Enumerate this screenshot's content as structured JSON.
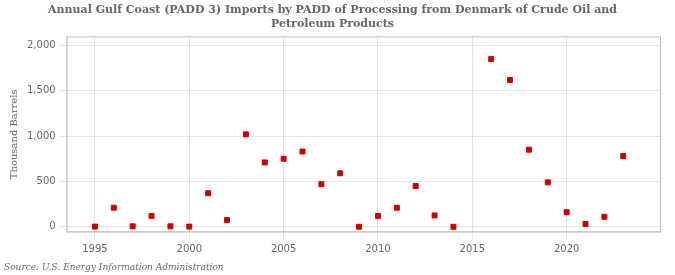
{
  "chart_data": {
    "type": "scatter",
    "title": "Annual Gulf Coast (PADD 3) Imports by PADD of Processing from Denmark of Crude Oil and\nPetroleum Products",
    "ylabel": "Thousand Barrels",
    "source": "Source: U.S. Energy Information Administration",
    "color": "#cc0000",
    "marker": "square",
    "grid": true,
    "x": [
      1995,
      1996,
      1997,
      1998,
      1999,
      2000,
      2001,
      2002,
      2003,
      2004,
      2005,
      2006,
      2007,
      2008,
      2009,
      2010,
      2011,
      2012,
      2013,
      2014,
      2016,
      2017,
      2018,
      2019,
      2020,
      2021,
      2022,
      2023
    ],
    "values": [
      2,
      210,
      5,
      120,
      5,
      2,
      370,
      75,
      1020,
      710,
      750,
      830,
      470,
      590,
      0,
      120,
      210,
      450,
      125,
      0,
      1850,
      1620,
      850,
      490,
      160,
      30,
      110,
      780
    ],
    "xlim": [
      1993.5,
      2025
    ],
    "xticks": [
      1995,
      2000,
      2005,
      2010,
      2015,
      2020
    ],
    "ylim": [
      -60,
      2100
    ],
    "yticks": [
      {
        "value": 0,
        "label": "0"
      },
      {
        "value": 500,
        "label": "500"
      },
      {
        "value": 1000,
        "label": "1,000"
      },
      {
        "value": 1500,
        "label": "1,500"
      },
      {
        "value": 2000,
        "label": "2,000"
      }
    ]
  }
}
